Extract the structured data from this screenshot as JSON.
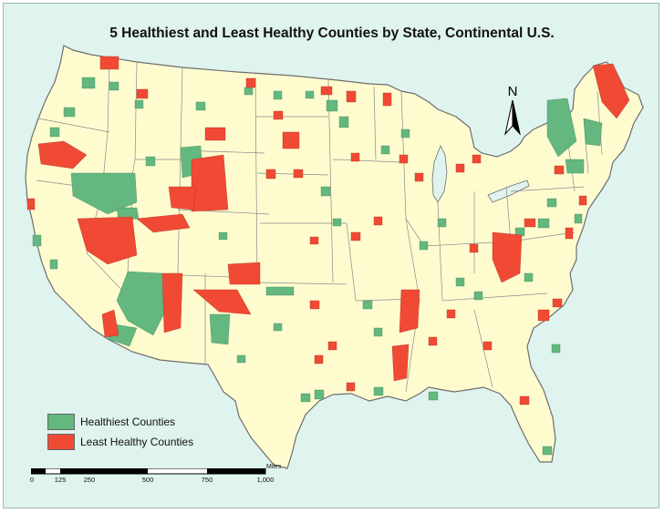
{
  "title": "5 Healthiest and Least Healthy Counties by State, Continental U.S.",
  "colors": {
    "background": "#dff3ef",
    "land": "#fefccf",
    "border": "#6e6e6e",
    "healthiest": "#63b77f",
    "least_healthy": "#f04a35"
  },
  "legend": {
    "items": [
      {
        "label": "Healthiest Counties",
        "color": "#63b77f"
      },
      {
        "label": "Least Healthy Counties",
        "color": "#f04a35"
      }
    ]
  },
  "north_arrow": {
    "letter": "N",
    "icon": "north-arrow-icon"
  },
  "scale_bar": {
    "units": "Miles",
    "ticks": [
      "0",
      "125",
      "250",
      "500",
      "750",
      "1,000"
    ]
  }
}
